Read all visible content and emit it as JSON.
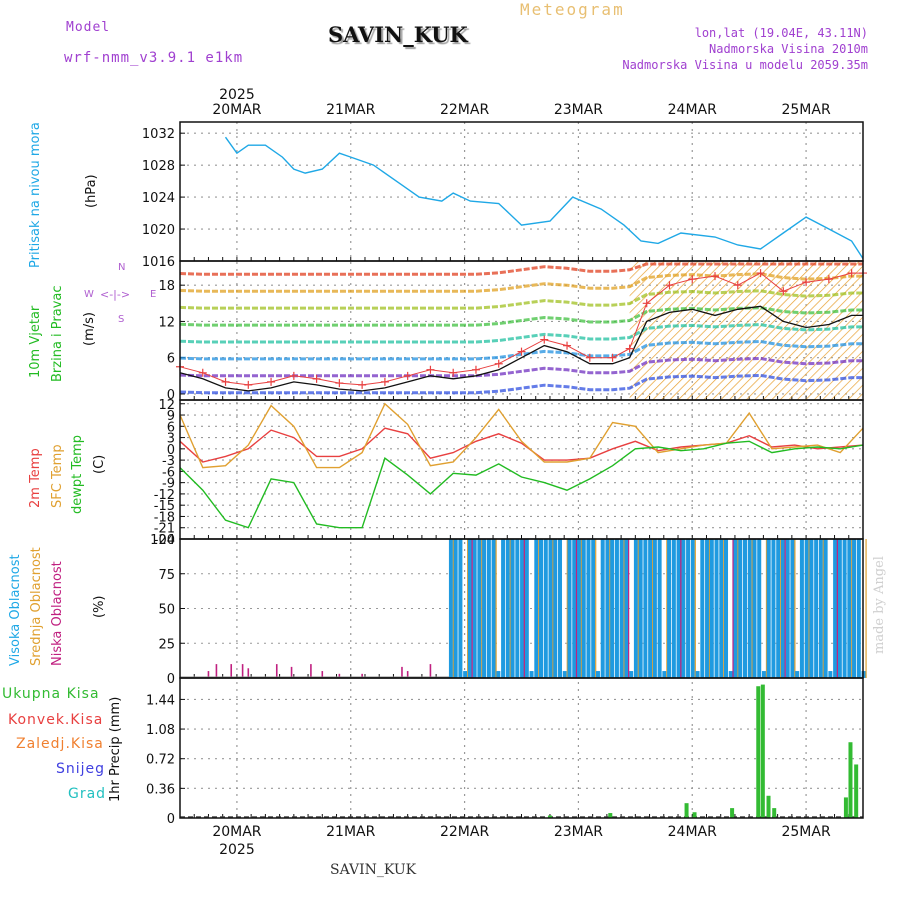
{
  "header": {
    "model_label": "Model",
    "model_name": "wrf-nmm_v3.9.1 e1km",
    "station": "SAVIN_KUK",
    "title": "Meteogram",
    "coords": "lon,lat (19.04E, 43.11N)",
    "elevation": "Nadmorska Visina 2010m",
    "model_elevation": "Nadmorska Visina u modelu 2059.35m",
    "footer_station": "SAVIN_KUK",
    "credit": "made by Angel"
  },
  "colors": {
    "pressure": "#1fa8e6",
    "temp2m": "#e84040",
    "sfc_temp": "#e0a030",
    "dewpt": "#22bb22",
    "high_cloud": "#1f9ae0",
    "mid_cloud": "#e0a030",
    "low_cloud": "#c02080",
    "precip": "#33bb33",
    "convective": "#e84040",
    "freezing": "#f08030",
    "snow": "#4040e0",
    "graupel": "#22c0c0",
    "wind_speed": "#111111"
  },
  "chart_data": [
    {
      "type": "line",
      "panel": "pressure",
      "ylabel": [
        "Pritisak na nivou mora",
        "(hPa)"
      ],
      "yticks": [
        "1016",
        "1020",
        "1024",
        "1028",
        "1032"
      ],
      "ylim": [
        1016,
        1033.4
      ],
      "x_days": [
        -0.1,
        0.0,
        0.1,
        0.25,
        0.4,
        0.5,
        0.6,
        0.75,
        0.9,
        1.0,
        1.2,
        1.45,
        1.6,
        1.8,
        1.9,
        2.05,
        2.3,
        2.5,
        2.75,
        2.95,
        3.2,
        3.4,
        3.55,
        3.7,
        3.9,
        4.2,
        4.4,
        4.6,
        4.8,
        5.0,
        5.2,
        5.4,
        5.5
      ],
      "values": [
        1031.5,
        1029.5,
        1030.5,
        1030.5,
        1029.0,
        1027.5,
        1027.0,
        1027.5,
        1029.5,
        1029.0,
        1028.0,
        1025.5,
        1024.0,
        1023.5,
        1024.5,
        1023.5,
        1023.2,
        1020.5,
        1021.0,
        1024.0,
        1022.5,
        1020.5,
        1018.5,
        1018.2,
        1019.5,
        1019.0,
        1018.0,
        1017.5,
        1019.5,
        1021.5,
        1020.0,
        1018.5,
        1016.3
      ]
    },
    {
      "type": "line",
      "panel": "wind",
      "ylabel": [
        "10m Vjetar",
        "Brzina i Pravac",
        "(m/s)"
      ],
      "direction_legend": [
        "N",
        "W",
        "E",
        "S"
      ],
      "yticks": [
        "0",
        "6",
        "12",
        "18"
      ],
      "ylim": [
        -1,
        22
      ],
      "x_days": [
        -0.5,
        -0.3,
        -0.1,
        0.1,
        0.3,
        0.5,
        0.7,
        0.9,
        1.1,
        1.3,
        1.5,
        1.7,
        1.9,
        2.1,
        2.3,
        2.5,
        2.7,
        2.9,
        3.1,
        3.3,
        3.45,
        3.6,
        3.8,
        4.0,
        4.2,
        4.4,
        4.6,
        4.8,
        5.0,
        5.2,
        5.4,
        5.5
      ],
      "series": [
        {
          "values": [
            3.5,
            2.5,
            1.0,
            0.5,
            1.0,
            2.0,
            1.5,
            0.8,
            0.5,
            1.0,
            2.0,
            3.0,
            2.5,
            3.0,
            4.0,
            6.0,
            8.0,
            7.0,
            5.0,
            5.0,
            6.0,
            12.0,
            13.5,
            14.0,
            13.0,
            14.0,
            14.5,
            12.0,
            11.0,
            11.5,
            13.0,
            13.0
          ]
        },
        {
          "values": [
            4.5,
            3.5,
            2.0,
            1.5,
            2.0,
            3.0,
            2.5,
            1.8,
            1.5,
            2.0,
            3.0,
            4.0,
            3.5,
            4.0,
            5.0,
            7.0,
            9.0,
            8.0,
            6.0,
            6.0,
            7.5,
            15.0,
            18.0,
            19.0,
            19.5,
            18.0,
            20.0,
            17.0,
            18.5,
            19.0,
            20.0,
            20.0
          ]
        }
      ]
    },
    {
      "type": "line",
      "panel": "temperature",
      "ylabel": [
        "2m Temp",
        "SFC Temp",
        "dewpt Temp",
        "(C)"
      ],
      "yticks": [
        "-24",
        "-21",
        "-18",
        "-15",
        "-12",
        "-9",
        "-6",
        "-3",
        "0",
        "3",
        "6",
        "9",
        "12"
      ],
      "ylim": [
        -24,
        13
      ],
      "x_days": [
        -0.5,
        -0.3,
        -0.1,
        0.1,
        0.3,
        0.5,
        0.7,
        0.9,
        1.1,
        1.3,
        1.5,
        1.7,
        1.9,
        2.1,
        2.3,
        2.5,
        2.7,
        2.9,
        3.1,
        3.3,
        3.5,
        3.7,
        3.9,
        4.1,
        4.3,
        4.5,
        4.7,
        4.9,
        5.1,
        5.3,
        5.5
      ],
      "series": [
        {
          "name": "2m Temp",
          "values": [
            2.0,
            -3.5,
            -2.0,
            0.0,
            5.0,
            3.0,
            -2.0,
            -2.0,
            0.0,
            5.5,
            4.0,
            -2.5,
            -1.0,
            2.0,
            4.0,
            1.5,
            -3.0,
            -3.0,
            -2.5,
            0.0,
            2.0,
            -0.5,
            0.5,
            1.0,
            1.5,
            3.5,
            0.5,
            1.0,
            0.0,
            0.5,
            1.0
          ]
        },
        {
          "name": "SFC Temp",
          "values": [
            9.0,
            -5.0,
            -4.5,
            1.0,
            11.5,
            6.0,
            -5.0,
            -5.0,
            -1.0,
            12.0,
            6.5,
            -4.5,
            -3.5,
            3.0,
            10.5,
            2.0,
            -3.5,
            -3.5,
            -2.5,
            7.0,
            6.0,
            -1.0,
            0.0,
            1.0,
            1.5,
            9.5,
            0.0,
            0.5,
            1.0,
            -1.0,
            5.5
          ]
        },
        {
          "name": "dewpt Temp",
          "values": [
            -5.0,
            -11.0,
            -19.0,
            -21.0,
            -8.0,
            -9.0,
            -20.0,
            -21.0,
            -21.0,
            -2.5,
            -7.0,
            -12.0,
            -6.5,
            -7.0,
            -4.0,
            -7.5,
            -9.0,
            -11.0,
            -8.0,
            -4.5,
            0.0,
            0.5,
            -0.5,
            0.0,
            1.5,
            2.0,
            -1.0,
            0.0,
            0.5,
            0.0,
            1.0
          ]
        }
      ]
    },
    {
      "type": "bar",
      "panel": "cloud",
      "ylabel": [
        "Visoka Oblacnost",
        "Srednja Oblacnost",
        "Niska Oblacnost",
        "(%)"
      ],
      "yticks": [
        "0",
        "25",
        "50",
        "75",
        "100"
      ],
      "ylim": [
        0,
        100
      ],
      "low_cloud": {
        "x_days": [
          -0.25,
          -0.18,
          -0.05,
          0.05,
          0.1,
          0.35,
          0.48,
          0.65,
          0.75,
          0.9,
          1.1,
          1.45,
          1.5,
          1.7
        ],
        "values": [
          5,
          10,
          10,
          10,
          7,
          10,
          8,
          10,
          5,
          3,
          3,
          8,
          5,
          10
        ]
      },
      "mid_high_start_day": 1.88,
      "mid_high_end_day": 5.52
    },
    {
      "type": "bar",
      "panel": "precip",
      "ylabel": [
        "1hr Precip (mm)"
      ],
      "legend": [
        "Ukupna Kisa",
        "Konvek.Kisa",
        "Zaledj.Kisa",
        "Snijeg",
        "Grad"
      ],
      "yticks": [
        "0",
        "0.36",
        "0.72",
        "1.08",
        "1.44"
      ],
      "ylim": [
        0,
        1.7
      ],
      "x_days": [
        2.75,
        3.28,
        3.95,
        4.02,
        4.35,
        4.58,
        4.62,
        4.67,
        4.72,
        5.35,
        5.39,
        5.44
      ],
      "values": [
        0.03,
        0.06,
        0.18,
        0.07,
        0.12,
        1.6,
        1.62,
        0.27,
        0.12,
        0.25,
        0.92,
        0.65
      ]
    }
  ],
  "xaxis": {
    "year": "2025",
    "days": [
      "20MAR",
      "21MAR",
      "22MAR",
      "23MAR",
      "24MAR",
      "25MAR"
    ],
    "xlim_days": [
      -0.5,
      5.5
    ]
  }
}
